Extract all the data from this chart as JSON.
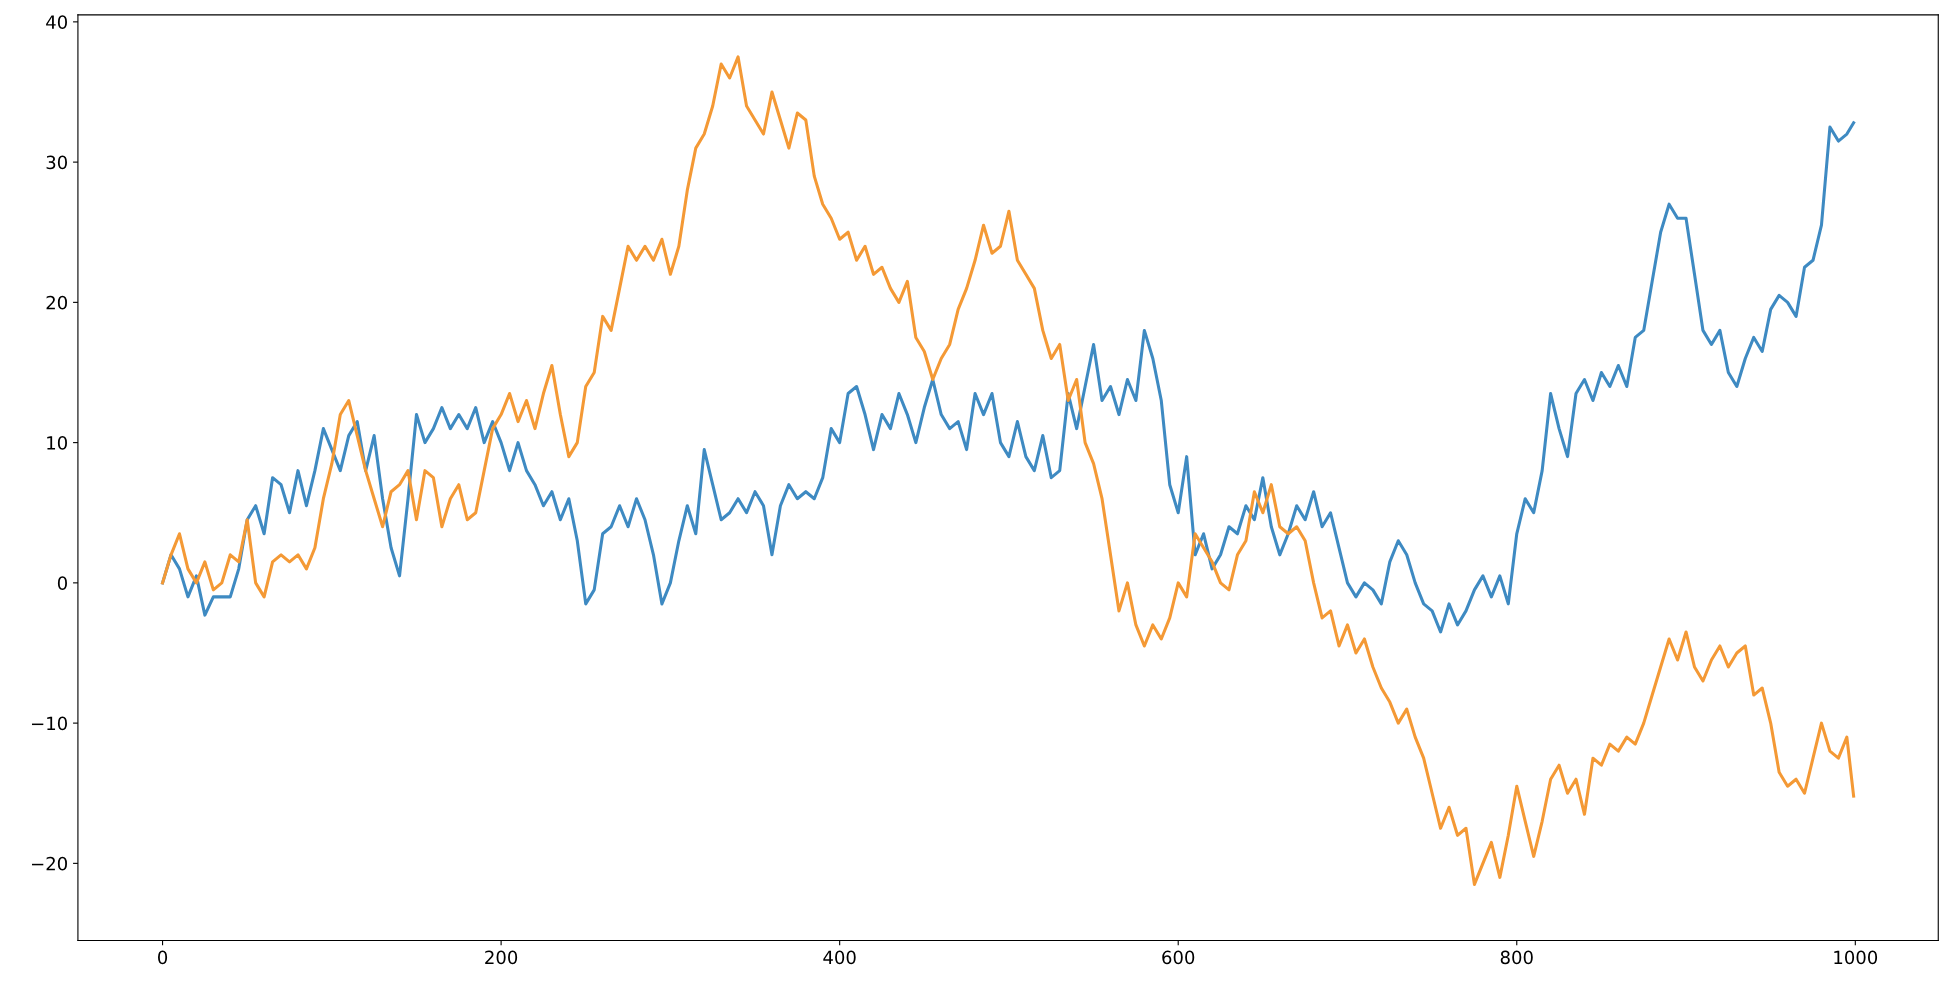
{
  "chart_data": {
    "type": "line",
    "xlim": [
      -50,
      1049
    ],
    "ylim": [
      -25.5,
      40.5
    ],
    "xticks": [
      0,
      200,
      400,
      600,
      800,
      1000
    ],
    "yticks": [
      {
        "value": -20,
        "label": "−20"
      },
      {
        "value": -10,
        "label": "−10"
      },
      0,
      10,
      20,
      30,
      40
    ],
    "grid": false,
    "series": [
      {
        "color": "#3e8ac2",
        "x": [
          0,
          5,
          10,
          15,
          20,
          25,
          30,
          40,
          45,
          50,
          55,
          60,
          65,
          70,
          75,
          80,
          85,
          90,
          95,
          100,
          105,
          110,
          115,
          120,
          125,
          130,
          135,
          140,
          145,
          150,
          155,
          160,
          165,
          170,
          175,
          180,
          185,
          190,
          195,
          200,
          205,
          210,
          215,
          220,
          225,
          230,
          235,
          240,
          245,
          250,
          255,
          260,
          265,
          270,
          275,
          280,
          285,
          290,
          295,
          300,
          305,
          310,
          315,
          320,
          325,
          330,
          335,
          340,
          345,
          350,
          355,
          360,
          365,
          370,
          375,
          380,
          385,
          390,
          395,
          400,
          405,
          410,
          415,
          420,
          425,
          430,
          435,
          440,
          445,
          450,
          455,
          460,
          465,
          470,
          475,
          480,
          485,
          490,
          495,
          500,
          505,
          510,
          515,
          520,
          525,
          530,
          535,
          540,
          545,
          550,
          555,
          560,
          565,
          570,
          575,
          580,
          585,
          590,
          595,
          600,
          605,
          610,
          615,
          620,
          625,
          630,
          635,
          640,
          645,
          650,
          655,
          660,
          665,
          670,
          675,
          680,
          685,
          690,
          695,
          700,
          705,
          710,
          715,
          720,
          725,
          730,
          735,
          740,
          745,
          750,
          755,
          760,
          765,
          770,
          775,
          780,
          785,
          790,
          795,
          800,
          805,
          810,
          815,
          820,
          825,
          830,
          835,
          840,
          845,
          850,
          855,
          860,
          865,
          870,
          875,
          880,
          885,
          890,
          895,
          900,
          905,
          910,
          915,
          920,
          925,
          930,
          935,
          940,
          945,
          950,
          955,
          960,
          965,
          970,
          975,
          980,
          985,
          990,
          995,
          999
        ],
        "values": [
          0,
          2,
          1,
          -1,
          0.5,
          -2.3,
          -1,
          -1,
          1,
          4.5,
          5.5,
          3.5,
          7.5,
          7,
          5,
          8,
          5.5,
          8,
          11,
          9.5,
          8,
          10.5,
          11.5,
          8,
          10.5,
          6,
          2.5,
          0.5,
          6,
          12,
          10,
          11,
          12.5,
          11,
          12,
          11,
          12.5,
          10,
          11.5,
          10,
          8,
          10,
          8,
          7,
          5.5,
          6.5,
          4.5,
          6,
          3,
          -1.5,
          -0.5,
          3.5,
          4,
          5.5,
          4,
          6,
          4.5,
          2,
          -1.5,
          0,
          3,
          5.5,
          3.5,
          9.5,
          7,
          4.5,
          5,
          6,
          5,
          6.5,
          5.5,
          2,
          5.5,
          7,
          6,
          6.5,
          6,
          7.5,
          11,
          10,
          13.5,
          14,
          12,
          9.5,
          12,
          11,
          13.5,
          12,
          10,
          12.5,
          14.5,
          12,
          11,
          11.5,
          9.5,
          13.5,
          12,
          13.5,
          10,
          9,
          11.5,
          9,
          8,
          10.5,
          7.5,
          8,
          13.5,
          11,
          14,
          17,
          13,
          14,
          12,
          14.5,
          13,
          18,
          16,
          13,
          7,
          5,
          9,
          2,
          3.5,
          1,
          2,
          4,
          3.5,
          5.5,
          4.5,
          7.5,
          4,
          2,
          3.5,
          5.5,
          4.5,
          6.5,
          4,
          5,
          2.5,
          0,
          -1,
          0,
          -0.5,
          -1.5,
          1.5,
          3,
          2,
          0,
          -1.5,
          -2,
          -3.5,
          -1.5,
          -3,
          -2,
          -0.5,
          0.5,
          -1,
          0.5,
          -1.5,
          3.5,
          6,
          5,
          8,
          13.5,
          11,
          9,
          13.5,
          14.5,
          13,
          15,
          14,
          15.5,
          14,
          17.5,
          18,
          21.5,
          25,
          27,
          26,
          26,
          22,
          18,
          17,
          18,
          15,
          14,
          16,
          17.5,
          16.5,
          19.5,
          20.5,
          20,
          19,
          22.5,
          23,
          25.5,
          32.5,
          31.5,
          32,
          32.8
        ]
      },
      {
        "color": "#f49935",
        "x": [
          0,
          5,
          10,
          15,
          20,
          25,
          30,
          35,
          40,
          45,
          50,
          55,
          60,
          65,
          70,
          75,
          80,
          85,
          90,
          95,
          100,
          105,
          110,
          115,
          120,
          125,
          130,
          135,
          140,
          145,
          150,
          155,
          160,
          165,
          170,
          175,
          180,
          185,
          190,
          195,
          200,
          205,
          210,
          215,
          220,
          225,
          230,
          235,
          240,
          245,
          250,
          255,
          260,
          265,
          270,
          275,
          280,
          285,
          290,
          295,
          300,
          305,
          310,
          315,
          320,
          325,
          330,
          335,
          340,
          345,
          350,
          355,
          360,
          365,
          370,
          375,
          380,
          385,
          390,
          395,
          400,
          405,
          410,
          415,
          420,
          425,
          430,
          435,
          440,
          445,
          450,
          455,
          460,
          465,
          470,
          475,
          480,
          485,
          490,
          495,
          500,
          505,
          510,
          515,
          520,
          525,
          530,
          535,
          540,
          545,
          550,
          555,
          560,
          565,
          570,
          575,
          580,
          585,
          590,
          595,
          600,
          605,
          610,
          615,
          620,
          625,
          630,
          635,
          640,
          645,
          650,
          655,
          660,
          665,
          670,
          675,
          680,
          685,
          690,
          695,
          700,
          705,
          710,
          715,
          720,
          725,
          730,
          735,
          740,
          745,
          750,
          755,
          760,
          765,
          770,
          775,
          780,
          785,
          790,
          795,
          800,
          805,
          810,
          815,
          820,
          825,
          830,
          835,
          840,
          845,
          850,
          855,
          860,
          865,
          870,
          875,
          880,
          885,
          890,
          895,
          900,
          905,
          910,
          915,
          920,
          925,
          930,
          935,
          940,
          945,
          950,
          955,
          960,
          965,
          970,
          975,
          980,
          985,
          990,
          995,
          999
        ],
        "values": [
          0,
          2,
          3.5,
          1,
          0,
          1.5,
          -0.5,
          0,
          2,
          1.5,
          4.5,
          0,
          -1,
          1.5,
          2,
          1.5,
          2,
          1,
          2.5,
          6,
          8.5,
          12,
          13,
          10.5,
          8,
          6,
          4,
          6.5,
          7,
          8,
          4.5,
          8,
          7.5,
          4,
          6,
          7,
          4.5,
          5,
          8,
          11,
          12,
          13.5,
          11.5,
          13,
          11,
          13.5,
          15.5,
          12,
          9,
          10,
          14,
          15,
          19,
          18,
          21,
          24,
          23,
          24,
          23,
          24.5,
          22,
          24,
          28,
          31,
          32,
          34,
          37,
          36,
          37.5,
          34,
          33,
          32,
          35,
          33,
          31,
          33.5,
          33,
          29,
          27,
          26,
          24.5,
          25,
          23,
          24,
          22,
          22.5,
          21,
          20,
          21.5,
          17.5,
          16.5,
          14.5,
          16,
          17,
          19.5,
          21,
          23,
          25.5,
          23.5,
          24,
          26.5,
          23,
          22,
          21,
          18,
          16,
          17,
          13,
          14.5,
          10,
          8.5,
          6,
          2,
          -2,
          0,
          -3,
          -4.5,
          -3,
          -4,
          -2.5,
          0,
          -1,
          3.5,
          2.5,
          1.5,
          0,
          -0.5,
          2,
          3,
          6.5,
          5,
          7,
          4,
          3.5,
          4,
          3,
          0,
          -2.5,
          -2,
          -4.5,
          -3,
          -5,
          -4,
          -6,
          -7.5,
          -8.5,
          -10,
          -9,
          -11,
          -12.5,
          -15,
          -17.5,
          -16,
          -18,
          -17.5,
          -21.5,
          -20,
          -18.5,
          -21,
          -18,
          -14.5,
          -17,
          -19.5,
          -17,
          -14,
          -13,
          -15,
          -14,
          -16.5,
          -12.5,
          -13,
          -11.5,
          -12,
          -11,
          -11.5,
          -10,
          -8,
          -6,
          -4,
          -5.5,
          -3.5,
          -6,
          -7,
          -5.5,
          -4.5,
          -6,
          -5,
          -4.5,
          -8,
          -7.5,
          -10,
          -13.5,
          -14.5,
          -14,
          -15,
          -12.5,
          -10,
          -12,
          -12.5,
          -11,
          -15.2
        ]
      }
    ]
  }
}
